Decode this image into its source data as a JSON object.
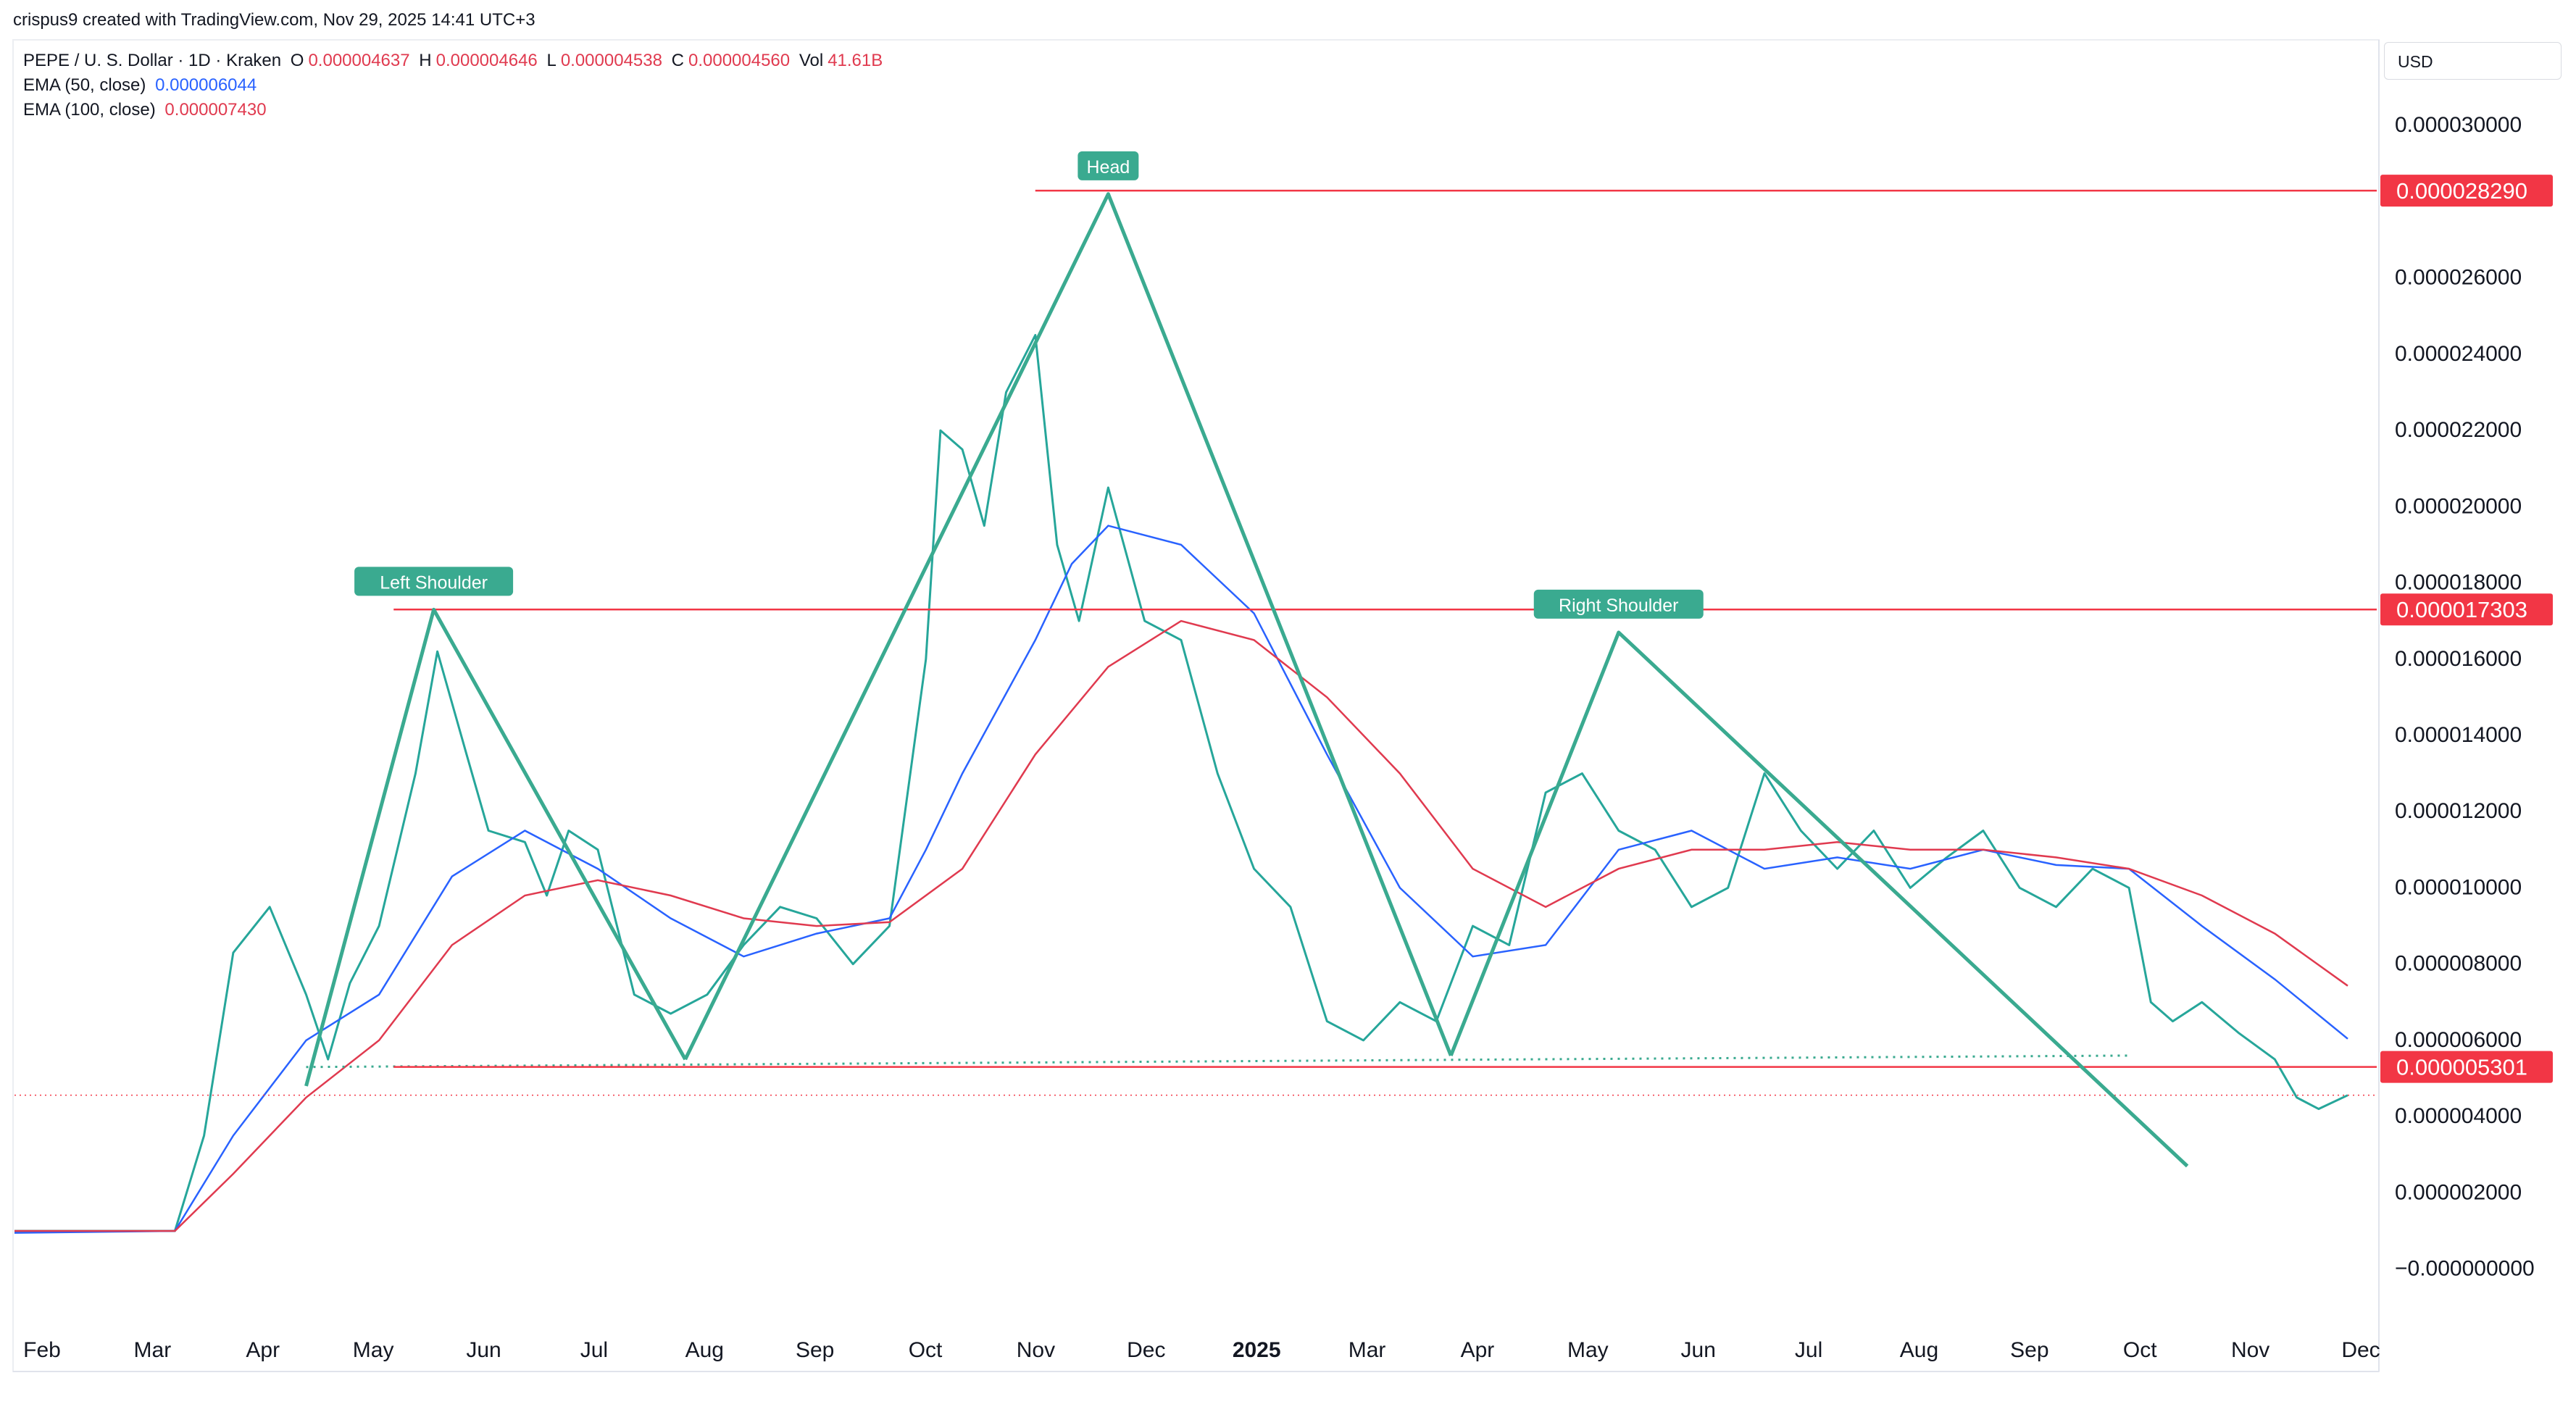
{
  "header": {
    "credit": "crispus9 created with TradingView.com, Nov 29, 2025 14:41 UTC+3",
    "symbol": "PEPE / U. S. Dollar · 1D · Kraken",
    "ohlc": {
      "o_label": "O",
      "o": "0.000004637",
      "h_label": "H",
      "h": "0.000004646",
      "l_label": "L",
      "l": "0.000004538",
      "c_label": "C",
      "c": "0.000004560",
      "vol_label": "Vol",
      "vol": "41.61B"
    },
    "ema50": {
      "label": "EMA (50, close)",
      "value": "0.000006044"
    },
    "ema100": {
      "label": "EMA (100, close)",
      "value": "0.000007430"
    }
  },
  "currency": "USD",
  "chart_data": {
    "type": "line",
    "x_axis_labels": [
      "Feb",
      "Mar",
      "Apr",
      "May",
      "Jun",
      "Jul",
      "Aug",
      "Sep",
      "Oct",
      "Nov",
      "Dec",
      "2025",
      "Mar",
      "Apr",
      "May",
      "Jun",
      "Jul",
      "Aug",
      "Sep",
      "Oct",
      "Nov",
      "Dec"
    ],
    "y_ticks": [
      {
        "v": 3e-05,
        "label": "0.000030000"
      },
      {
        "v": 2.6e-05,
        "label": "0.000026000"
      },
      {
        "v": 2.4e-05,
        "label": "0.000024000"
      },
      {
        "v": 2.2e-05,
        "label": "0.000022000"
      },
      {
        "v": 2e-05,
        "label": "0.000020000"
      },
      {
        "v": 1.8e-05,
        "label": "0.000018000"
      },
      {
        "v": 1.6e-05,
        "label": "0.000016000"
      },
      {
        "v": 1.4e-05,
        "label": "0.000014000"
      },
      {
        "v": 1.2e-05,
        "label": "0.000012000"
      },
      {
        "v": 1e-05,
        "label": "0.000010000"
      },
      {
        "v": 8e-06,
        "label": "0.000008000"
      },
      {
        "v": 6e-06,
        "label": "0.000006000"
      },
      {
        "v": 4e-06,
        "label": "0.000004000"
      },
      {
        "v": 2e-06,
        "label": "0.000002000"
      },
      {
        "v": 0.0,
        "label": "−0.000000000"
      }
    ],
    "ylim": [
      -1.3e-06,
      3.12e-05
    ],
    "close_path": [
      {
        "x": 0.0,
        "y": 1e-06
      },
      {
        "x": 2.2,
        "y": 1e-06
      },
      {
        "x": 2.6,
        "y": 3.5e-06
      },
      {
        "x": 3.0,
        "y": 8.3e-06
      },
      {
        "x": 3.5,
        "y": 9.5e-06
      },
      {
        "x": 4.0,
        "y": 7.2e-06
      },
      {
        "x": 4.3,
        "y": 5.5e-06
      },
      {
        "x": 4.6,
        "y": 7.5e-06
      },
      {
        "x": 5.0,
        "y": 9e-06
      },
      {
        "x": 5.5,
        "y": 1.3e-05
      },
      {
        "x": 5.8,
        "y": 1.62e-05
      },
      {
        "x": 6.2,
        "y": 1.35e-05
      },
      {
        "x": 6.5,
        "y": 1.15e-05
      },
      {
        "x": 7.0,
        "y": 1.12e-05
      },
      {
        "x": 7.3,
        "y": 9.8e-06
      },
      {
        "x": 7.6,
        "y": 1.15e-05
      },
      {
        "x": 8.0,
        "y": 1.1e-05
      },
      {
        "x": 8.5,
        "y": 7.2e-06
      },
      {
        "x": 9.0,
        "y": 6.7e-06
      },
      {
        "x": 9.5,
        "y": 7.2e-06
      },
      {
        "x": 10.0,
        "y": 8.5e-06
      },
      {
        "x": 10.5,
        "y": 9.5e-06
      },
      {
        "x": 11.0,
        "y": 9.2e-06
      },
      {
        "x": 11.5,
        "y": 8e-06
      },
      {
        "x": 12.0,
        "y": 9e-06
      },
      {
        "x": 12.5,
        "y": 1.6e-05
      },
      {
        "x": 12.7,
        "y": 2.2e-05
      },
      {
        "x": 13.0,
        "y": 2.15e-05
      },
      {
        "x": 13.3,
        "y": 1.95e-05
      },
      {
        "x": 13.6,
        "y": 2.3e-05
      },
      {
        "x": 14.0,
        "y": 2.45e-05
      },
      {
        "x": 14.3,
        "y": 1.9e-05
      },
      {
        "x": 14.6,
        "y": 1.7e-05
      },
      {
        "x": 15.0,
        "y": 2.05e-05
      },
      {
        "x": 15.5,
        "y": 1.7e-05
      },
      {
        "x": 16.0,
        "y": 1.65e-05
      },
      {
        "x": 16.5,
        "y": 1.3e-05
      },
      {
        "x": 17.0,
        "y": 1.05e-05
      },
      {
        "x": 17.5,
        "y": 9.5e-06
      },
      {
        "x": 18.0,
        "y": 6.5e-06
      },
      {
        "x": 18.5,
        "y": 6e-06
      },
      {
        "x": 19.0,
        "y": 7e-06
      },
      {
        "x": 19.5,
        "y": 6.5e-06
      },
      {
        "x": 20.0,
        "y": 9e-06
      },
      {
        "x": 20.5,
        "y": 8.5e-06
      },
      {
        "x": 21.0,
        "y": 1.25e-05
      },
      {
        "x": 21.5,
        "y": 1.3e-05
      },
      {
        "x": 22.0,
        "y": 1.15e-05
      },
      {
        "x": 22.5,
        "y": 1.1e-05
      },
      {
        "x": 23.0,
        "y": 9.5e-06
      },
      {
        "x": 23.5,
        "y": 1e-05
      },
      {
        "x": 24.0,
        "y": 1.3e-05
      },
      {
        "x": 24.5,
        "y": 1.15e-05
      },
      {
        "x": 25.0,
        "y": 1.05e-05
      },
      {
        "x": 25.5,
        "y": 1.15e-05
      },
      {
        "x": 26.0,
        "y": 1e-05
      },
      {
        "x": 26.5,
        "y": 1.08e-05
      },
      {
        "x": 27.0,
        "y": 1.15e-05
      },
      {
        "x": 27.5,
        "y": 1e-05
      },
      {
        "x": 28.0,
        "y": 9.5e-06
      },
      {
        "x": 28.5,
        "y": 1.05e-05
      },
      {
        "x": 29.0,
        "y": 1e-05
      },
      {
        "x": 29.3,
        "y": 7e-06
      },
      {
        "x": 29.6,
        "y": 6.5e-06
      },
      {
        "x": 30.0,
        "y": 7e-06
      },
      {
        "x": 30.5,
        "y": 6.2e-06
      },
      {
        "x": 31.0,
        "y": 5.5e-06
      },
      {
        "x": 31.3,
        "y": 4.5e-06
      },
      {
        "x": 31.6,
        "y": 4.2e-06
      },
      {
        "x": 32.0,
        "y": 4.56e-06
      }
    ],
    "ema50_path": [
      {
        "x": 0.0,
        "y": 9.5e-07
      },
      {
        "x": 2.2,
        "y": 1e-06
      },
      {
        "x": 3.0,
        "y": 3.5e-06
      },
      {
        "x": 4.0,
        "y": 6e-06
      },
      {
        "x": 5.0,
        "y": 7.2e-06
      },
      {
        "x": 6.0,
        "y": 1.03e-05
      },
      {
        "x": 7.0,
        "y": 1.15e-05
      },
      {
        "x": 8.0,
        "y": 1.05e-05
      },
      {
        "x": 9.0,
        "y": 9.2e-06
      },
      {
        "x": 10.0,
        "y": 8.2e-06
      },
      {
        "x": 11.0,
        "y": 8.8e-06
      },
      {
        "x": 12.0,
        "y": 9.2e-06
      },
      {
        "x": 12.5,
        "y": 1.1e-05
      },
      {
        "x": 13.0,
        "y": 1.3e-05
      },
      {
        "x": 14.0,
        "y": 1.65e-05
      },
      {
        "x": 14.5,
        "y": 1.85e-05
      },
      {
        "x": 15.0,
        "y": 1.95e-05
      },
      {
        "x": 16.0,
        "y": 1.9e-05
      },
      {
        "x": 17.0,
        "y": 1.72e-05
      },
      {
        "x": 18.0,
        "y": 1.35e-05
      },
      {
        "x": 19.0,
        "y": 1e-05
      },
      {
        "x": 20.0,
        "y": 8.2e-06
      },
      {
        "x": 21.0,
        "y": 8.5e-06
      },
      {
        "x": 22.0,
        "y": 1.1e-05
      },
      {
        "x": 23.0,
        "y": 1.15e-05
      },
      {
        "x": 24.0,
        "y": 1.05e-05
      },
      {
        "x": 25.0,
        "y": 1.08e-05
      },
      {
        "x": 26.0,
        "y": 1.05e-05
      },
      {
        "x": 27.0,
        "y": 1.1e-05
      },
      {
        "x": 28.0,
        "y": 1.06e-05
      },
      {
        "x": 29.0,
        "y": 1.05e-05
      },
      {
        "x": 30.0,
        "y": 9e-06
      },
      {
        "x": 31.0,
        "y": 7.6e-06
      },
      {
        "x": 32.0,
        "y": 6.04e-06
      }
    ],
    "ema100_path": [
      {
        "x": 0.0,
        "y": 1e-06
      },
      {
        "x": 2.2,
        "y": 1e-06
      },
      {
        "x": 3.0,
        "y": 2.5e-06
      },
      {
        "x": 4.0,
        "y": 4.5e-06
      },
      {
        "x": 5.0,
        "y": 6e-06
      },
      {
        "x": 6.0,
        "y": 8.5e-06
      },
      {
        "x": 7.0,
        "y": 9.8e-06
      },
      {
        "x": 8.0,
        "y": 1.02e-05
      },
      {
        "x": 9.0,
        "y": 9.8e-06
      },
      {
        "x": 10.0,
        "y": 9.2e-06
      },
      {
        "x": 11.0,
        "y": 9e-06
      },
      {
        "x": 12.0,
        "y": 9.1e-06
      },
      {
        "x": 13.0,
        "y": 1.05e-05
      },
      {
        "x": 14.0,
        "y": 1.35e-05
      },
      {
        "x": 15.0,
        "y": 1.58e-05
      },
      {
        "x": 16.0,
        "y": 1.7e-05
      },
      {
        "x": 17.0,
        "y": 1.65e-05
      },
      {
        "x": 18.0,
        "y": 1.5e-05
      },
      {
        "x": 19.0,
        "y": 1.3e-05
      },
      {
        "x": 20.0,
        "y": 1.05e-05
      },
      {
        "x": 21.0,
        "y": 9.5e-06
      },
      {
        "x": 22.0,
        "y": 1.05e-05
      },
      {
        "x": 23.0,
        "y": 1.1e-05
      },
      {
        "x": 24.0,
        "y": 1.1e-05
      },
      {
        "x": 25.0,
        "y": 1.12e-05
      },
      {
        "x": 26.0,
        "y": 1.1e-05
      },
      {
        "x": 27.0,
        "y": 1.1e-05
      },
      {
        "x": 28.0,
        "y": 1.08e-05
      },
      {
        "x": 29.0,
        "y": 1.05e-05
      },
      {
        "x": 30.0,
        "y": 9.8e-06
      },
      {
        "x": 31.0,
        "y": 8.8e-06
      },
      {
        "x": 32.0,
        "y": 7.43e-06
      }
    ],
    "pattern_lines": [
      [
        {
          "x": 4.0,
          "y": 4.8e-06
        },
        {
          "x": 5.75,
          "y": 1.73e-05
        },
        {
          "x": 9.2,
          "y": 5.5e-06
        }
      ],
      [
        {
          "x": 9.2,
          "y": 5.5e-06
        },
        {
          "x": 15.0,
          "y": 2.82e-05
        },
        {
          "x": 19.7,
          "y": 5.6e-06
        }
      ],
      [
        {
          "x": 19.7,
          "y": 5.6e-06
        },
        {
          "x": 22.0,
          "y": 1.67e-05
        },
        {
          "x": 29.8,
          "y": 2.7e-06
        }
      ]
    ],
    "neckline": [
      {
        "x": 4.0,
        "y": 5.3e-06
      },
      {
        "x": 29.0,
        "y": 5.6e-06
      }
    ],
    "horizontal_levels": [
      {
        "y": 2.829e-05,
        "label": "0.000028290"
      },
      {
        "y": 1.7303e-05,
        "label": "0.000017303"
      },
      {
        "y": 5.301e-06,
        "label": "0.000005301"
      }
    ],
    "last_price": 4.56e-06,
    "annotations": [
      {
        "text": "Left Shoulder",
        "x": 5.75,
        "y": 1.73e-05
      },
      {
        "text": "Head",
        "x": 15.0,
        "y": 2.82e-05
      },
      {
        "text": "Right Shoulder",
        "x": 22.0,
        "y": 1.67e-05
      }
    ],
    "colors": {
      "up": "#26a69a",
      "down": "#ef5350",
      "ema50": "#2962ff",
      "ema100": "#e03a4f",
      "pattern": "#3aaa90",
      "level": "#f23645",
      "label_bg": "#3aaa90"
    }
  }
}
